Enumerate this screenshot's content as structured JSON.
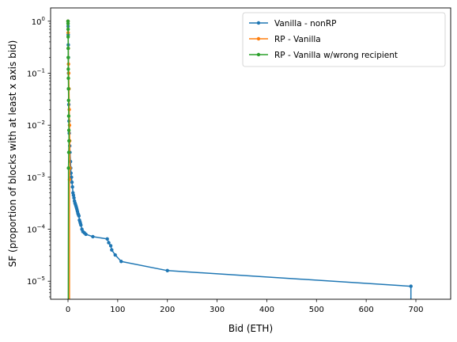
{
  "chart_data": {
    "type": "line",
    "title": "",
    "xlabel": "Bid (ETH)",
    "ylabel": "SF (proportion of blocks with at least x axis bid)",
    "xlim": [
      -35,
      770
    ],
    "ylim": [
      4.5e-06,
      1.8
    ],
    "yscale": "log",
    "x_ticks": [
      0,
      100,
      200,
      300,
      400,
      500,
      600,
      700
    ],
    "x_tick_labels": [
      "0",
      "100",
      "200",
      "300",
      "400",
      "500",
      "600",
      "700"
    ],
    "y_ticks": [
      1e-05,
      0.0001,
      0.001,
      0.01,
      0.1,
      1
    ],
    "y_tick_labels": [
      {
        "base": "10",
        "exp": "−5"
      },
      {
        "base": "10",
        "exp": "−4"
      },
      {
        "base": "10",
        "exp": "−3"
      },
      {
        "base": "10",
        "exp": "−2"
      },
      {
        "base": "10",
        "exp": "−1"
      },
      {
        "base": "10",
        "exp": "0"
      }
    ],
    "grid": false,
    "legend_position": "top-right",
    "series": [
      {
        "name": "Vanilla - nonRP",
        "color": "#1f77b4",
        "points": [
          [
            0,
            1.0
          ],
          [
            0.2,
            0.8
          ],
          [
            0.4,
            0.55
          ],
          [
            0.6,
            0.35
          ],
          [
            0.8,
            0.2
          ],
          [
            1.0,
            0.1
          ],
          [
            1.3,
            0.05
          ],
          [
            1.6,
            0.025
          ],
          [
            2.0,
            0.012
          ],
          [
            2.5,
            0.007
          ],
          [
            3.0,
            0.005
          ],
          [
            3.5,
            0.004
          ],
          [
            4.0,
            0.003
          ],
          [
            5.0,
            0.002
          ],
          [
            5.5,
            0.0015
          ],
          [
            6.0,
            0.0012
          ],
          [
            7.0,
            0.001
          ],
          [
            8.0,
            0.0008
          ],
          [
            9.0,
            0.00065
          ],
          [
            10.0,
            0.0005
          ],
          [
            11.0,
            0.00045
          ],
          [
            12.0,
            0.0004
          ],
          [
            13.0,
            0.00035
          ],
          [
            14.0,
            0.00032
          ],
          [
            15.0,
            0.0003
          ],
          [
            16.0,
            0.00028
          ],
          [
            17.0,
            0.00026
          ],
          [
            18.0,
            0.00024
          ],
          [
            19.0,
            0.00022
          ],
          [
            20.0,
            0.0002
          ],
          [
            21.0,
            0.00019
          ],
          [
            22.0,
            0.00018
          ],
          [
            23.0,
            0.00015
          ],
          [
            24.0,
            0.00014
          ],
          [
            25.0,
            0.00013
          ],
          [
            26.0,
            0.00012
          ],
          [
            28.0,
            0.0001
          ],
          [
            30.0,
            9e-05
          ],
          [
            33.0,
            8.5e-05
          ],
          [
            36.0,
            8e-05
          ],
          [
            50.0,
            7.2e-05
          ],
          [
            79.0,
            6.5e-05
          ],
          [
            82.0,
            5.5e-05
          ],
          [
            86.0,
            4.8e-05
          ],
          [
            88.0,
            4e-05
          ],
          [
            95.0,
            3.2e-05
          ],
          [
            107.0,
            2.4e-05
          ],
          [
            200.0,
            1.6e-05
          ],
          [
            690.0,
            8e-06
          ]
        ],
        "drop_to": [
          690.0,
          4.5e-06
        ]
      },
      {
        "name": "RP - Vanilla",
        "color": "#ff7f0e",
        "points": [
          [
            0,
            1.0
          ],
          [
            0.3,
            0.6
          ],
          [
            0.6,
            0.3
          ],
          [
            1.0,
            0.15
          ],
          [
            1.5,
            0.1
          ],
          [
            2.0,
            0.05
          ],
          [
            2.5,
            0.02
          ],
          [
            3.0,
            0.01
          ],
          [
            3.5,
            0.005
          ],
          [
            4.0,
            0.0015
          ],
          [
            3.0,
            0.0009
          ]
        ],
        "drop_to": [
          3.0,
          4.5e-06
        ]
      },
      {
        "name": "RP - Vanilla w/wrong recipient",
        "color": "#2ca02c",
        "points": [
          [
            0,
            1.0
          ],
          [
            0.1,
            0.9
          ],
          [
            0.2,
            0.7
          ],
          [
            0.3,
            0.5
          ],
          [
            0.4,
            0.3
          ],
          [
            0.5,
            0.2
          ],
          [
            0.6,
            0.12
          ],
          [
            0.8,
            0.08
          ],
          [
            1.0,
            0.05
          ],
          [
            1.2,
            0.03
          ],
          [
            1.5,
            0.015
          ],
          [
            1.8,
            0.008
          ],
          [
            2.0,
            0.005
          ],
          [
            1.5,
            0.003
          ],
          [
            1.0,
            0.0015
          ]
        ],
        "drop_to": [
          0.6,
          4.5e-06
        ]
      }
    ]
  }
}
